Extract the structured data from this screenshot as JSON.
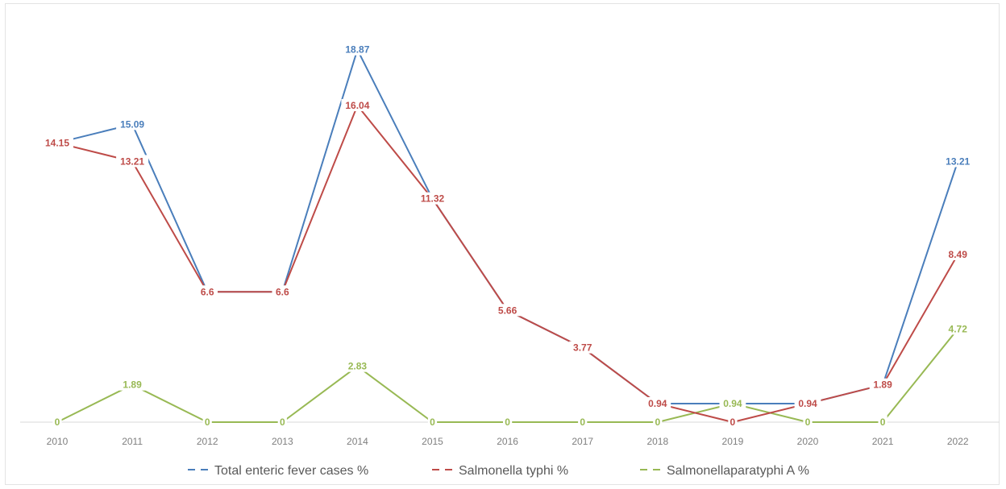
{
  "chart_data": {
    "type": "line",
    "x": [
      "2010",
      "2011",
      "2012",
      "2013",
      "2014",
      "2015",
      "2016",
      "2017",
      "2018",
      "2019",
      "2020",
      "2021",
      "2022"
    ],
    "ylim": [
      0,
      20
    ],
    "grid": false,
    "legend": "bottom",
    "series": [
      {
        "name": "Total enteric fever cases %",
        "color": "#4a7ebb",
        "values": [
          14.15,
          15.09,
          6.6,
          6.6,
          18.87,
          11.32,
          5.66,
          3.77,
          0.94,
          0.94,
          0.94,
          1.89,
          13.21
        ],
        "labels": [
          "",
          "15.09",
          "",
          "",
          "18.87",
          "",
          "",
          "",
          "",
          "",
          "",
          "",
          "13.21"
        ]
      },
      {
        "name": "Salmonella typhi %",
        "color": "#be4b48",
        "values": [
          14.15,
          13.21,
          6.6,
          6.6,
          16.04,
          11.32,
          5.66,
          3.77,
          0.94,
          0,
          0.94,
          1.89,
          8.49
        ],
        "labels": [
          "14.15",
          "13.21",
          "6.6",
          "6.6",
          "16.04",
          "11.32",
          "5.66",
          "3.77",
          "0.94",
          "0",
          "0.94",
          "1.89",
          "8.49"
        ]
      },
      {
        "name": "Salmonellaparatyphi A %",
        "color": "#98b954",
        "values": [
          0,
          1.89,
          0,
          0,
          2.83,
          0,
          0,
          0,
          0,
          0.94,
          0,
          0,
          4.72
        ],
        "labels": [
          "0",
          "1.89",
          "0",
          "0",
          "2.83",
          "0",
          "0",
          "0",
          "0",
          "0.94",
          "0",
          "0",
          "4.72"
        ]
      }
    ]
  }
}
